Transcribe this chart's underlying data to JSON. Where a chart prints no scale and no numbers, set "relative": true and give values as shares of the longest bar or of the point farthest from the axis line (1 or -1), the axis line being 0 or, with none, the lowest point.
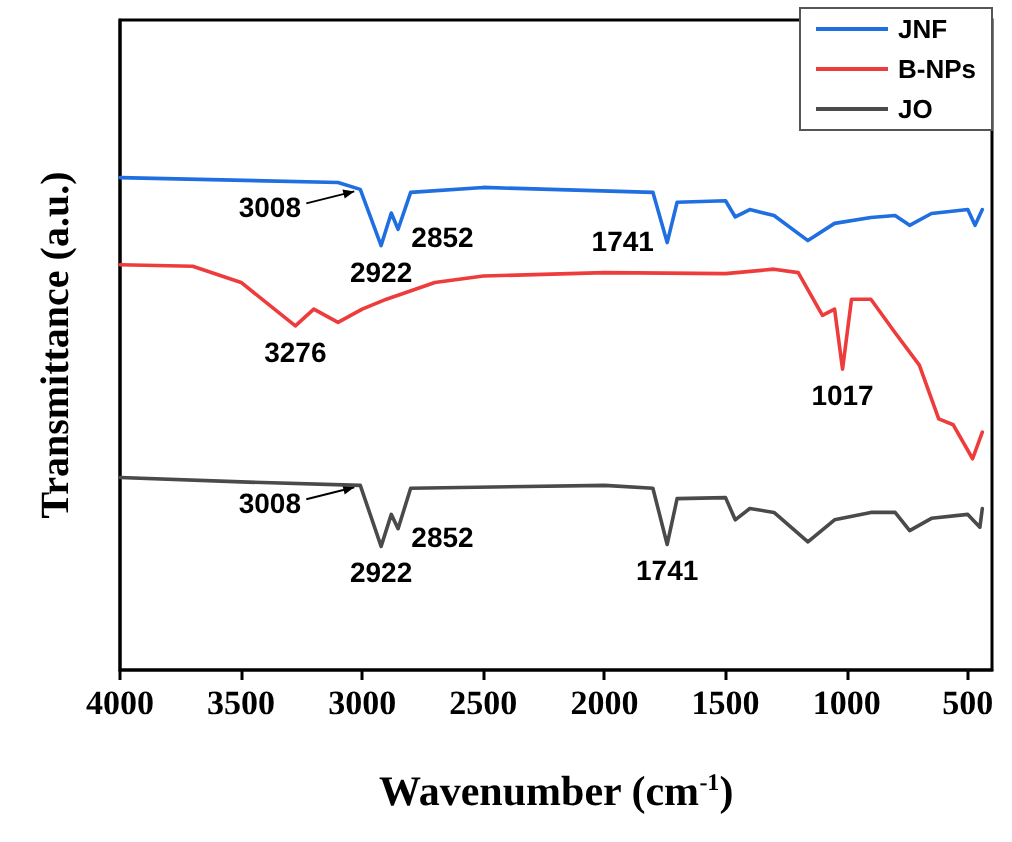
{
  "chart_data": {
    "type": "line",
    "xlabel": "Wavenumber (cm$^{-1}$)",
    "ylabel": "Transmittance (a.u.)",
    "relative": true,
    "xlim": [
      4000,
      400
    ],
    "xticks": [
      4000,
      3500,
      3000,
      2500,
      2000,
      1500,
      1000,
      500
    ],
    "legend": "top right",
    "grid": false,
    "marker": "none",
    "series": [
      {
        "name": "JNF",
        "color": "#1f6fe0",
        "x": [
          4000,
          3100,
          3008,
          2922,
          2880,
          2852,
          2800,
          2500,
          1800,
          1741,
          1700,
          1500,
          1460,
          1400,
          1300,
          1160,
          1050,
          900,
          800,
          740,
          650,
          500,
          470,
          440
        ],
        "values": [
          1.0,
          0.99,
          0.976,
          0.862,
          0.928,
          0.895,
          0.97,
          0.98,
          0.97,
          0.868,
          0.95,
          0.953,
          0.92,
          0.935,
          0.923,
          0.872,
          0.907,
          0.919,
          0.923,
          0.903,
          0.927,
          0.935,
          0.903,
          0.935
        ]
      },
      {
        "name": "B-NPs",
        "color": "#ee3b3b",
        "x": [
          4000,
          3700,
          3500,
          3276,
          3200,
          3100,
          3000,
          2900,
          2700,
          2500,
          2000,
          1500,
          1300,
          1200,
          1100,
          1050,
          1017,
          980,
          900,
          800,
          700,
          620,
          560,
          480,
          440
        ],
        "values": [
          0.823,
          0.82,
          0.787,
          0.699,
          0.733,
          0.706,
          0.733,
          0.753,
          0.787,
          0.8,
          0.807,
          0.805,
          0.814,
          0.807,
          0.72,
          0.733,
          0.611,
          0.753,
          0.753,
          0.685,
          0.619,
          0.51,
          0.498,
          0.429,
          0.483
        ]
      },
      {
        "name": "JO",
        "color": "#4a4a4a",
        "x": [
          4000,
          3500,
          3008,
          2922,
          2880,
          2852,
          2800,
          2000,
          1800,
          1741,
          1700,
          1500,
          1460,
          1400,
          1300,
          1160,
          1050,
          900,
          800,
          740,
          650,
          500,
          450,
          440
        ],
        "values": [
          0.391,
          0.382,
          0.375,
          0.251,
          0.316,
          0.287,
          0.369,
          0.375,
          0.369,
          0.255,
          0.348,
          0.35,
          0.305,
          0.328,
          0.32,
          0.26,
          0.305,
          0.32,
          0.32,
          0.283,
          0.308,
          0.316,
          0.29,
          0.328
        ]
      }
    ],
    "annotations": [
      {
        "text": "2922",
        "x": 2922,
        "y": 0.862
      },
      {
        "text": "2852",
        "x": 2852,
        "y": 0.895
      },
      {
        "text": "3008",
        "x": 3008,
        "y": 0.976
      },
      {
        "text": "1741",
        "x": 1741,
        "y": 0.868
      },
      {
        "text": "3276",
        "x": 3276,
        "y": 0.699
      },
      {
        "text": "1017",
        "x": 1017,
        "y": 0.611
      },
      {
        "text": "2922",
        "x": 2922,
        "y": 0.251
      },
      {
        "text": "2852",
        "x": 2852,
        "y": 0.287
      },
      {
        "text": "3008",
        "x": 3008,
        "y": 0.375
      },
      {
        "text": "1741",
        "x": 1741,
        "y": 0.255
      }
    ]
  }
}
